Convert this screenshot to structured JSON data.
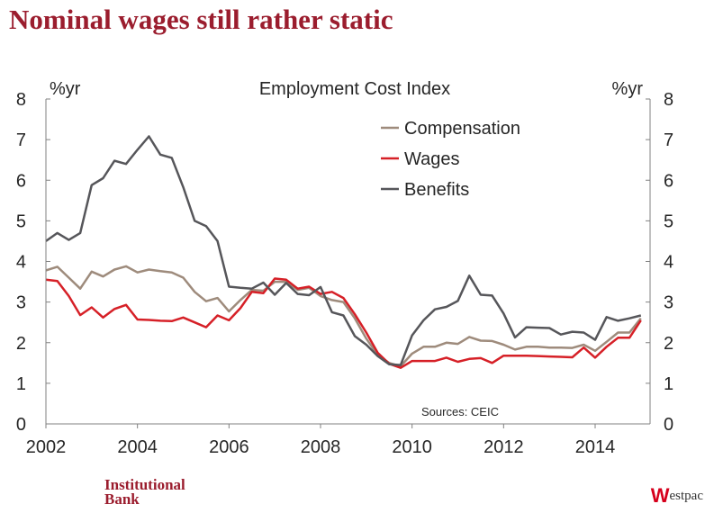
{
  "page": {
    "title": "Nominal wages still rather static",
    "footer_left_line1": "Institutional",
    "footer_left_line2": "Bank",
    "brand_mark": "W",
    "brand_text": "estpac"
  },
  "colors": {
    "title": "#9b1d2e",
    "compensation": "#9e8b7c",
    "wages": "#d62027",
    "benefits": "#56565a",
    "axis": "#808080"
  },
  "chart_data": {
    "type": "line",
    "title": "Employment Cost Index",
    "ylabel_left": "%yr",
    "ylabel_right": "%yr",
    "source": "Sources: CEIC",
    "xlim": [
      2002,
      2015.2
    ],
    "ylim": [
      0,
      8
    ],
    "x_ticks": [
      2002,
      2004,
      2006,
      2008,
      2010,
      2012,
      2014
    ],
    "y_ticks": [
      0,
      1,
      2,
      3,
      4,
      5,
      6,
      7,
      8
    ],
    "legend_position": "top-right",
    "series": [
      {
        "name": "Compensation",
        "color": "#9e8b7c",
        "points": [
          [
            2002.0,
            3.78
          ],
          [
            2002.25,
            3.87
          ],
          [
            2002.5,
            3.6
          ],
          [
            2002.75,
            3.33
          ],
          [
            2003.0,
            3.75
          ],
          [
            2003.25,
            3.63
          ],
          [
            2003.5,
            3.8
          ],
          [
            2003.75,
            3.88
          ],
          [
            2004.0,
            3.73
          ],
          [
            2004.25,
            3.8
          ],
          [
            2004.5,
            3.76
          ],
          [
            2004.75,
            3.73
          ],
          [
            2005.0,
            3.6
          ],
          [
            2005.25,
            3.25
          ],
          [
            2005.5,
            3.02
          ],
          [
            2005.75,
            3.1
          ],
          [
            2006.0,
            2.77
          ],
          [
            2006.25,
            3.05
          ],
          [
            2006.5,
            3.3
          ],
          [
            2006.75,
            3.28
          ],
          [
            2007.0,
            3.5
          ],
          [
            2007.25,
            3.5
          ],
          [
            2007.5,
            3.3
          ],
          [
            2007.75,
            3.35
          ],
          [
            2008.0,
            3.15
          ],
          [
            2008.25,
            3.05
          ],
          [
            2008.5,
            3.0
          ],
          [
            2008.75,
            2.6
          ],
          [
            2009.0,
            2.1
          ],
          [
            2009.25,
            1.7
          ],
          [
            2009.5,
            1.5
          ],
          [
            2009.75,
            1.42
          ],
          [
            2010.0,
            1.73
          ],
          [
            2010.25,
            1.9
          ],
          [
            2010.5,
            1.9
          ],
          [
            2010.75,
            2.0
          ],
          [
            2011.0,
            1.97
          ],
          [
            2011.25,
            2.14
          ],
          [
            2011.5,
            2.05
          ],
          [
            2011.75,
            2.04
          ],
          [
            2012.0,
            1.95
          ],
          [
            2012.25,
            1.83
          ],
          [
            2012.5,
            1.9
          ],
          [
            2012.75,
            1.9
          ],
          [
            2013.0,
            1.88
          ],
          [
            2013.25,
            1.88
          ],
          [
            2013.5,
            1.87
          ],
          [
            2013.75,
            1.95
          ],
          [
            2014.0,
            1.8
          ],
          [
            2014.25,
            2.02
          ],
          [
            2014.5,
            2.25
          ],
          [
            2014.75,
            2.25
          ],
          [
            2015.0,
            2.6
          ]
        ]
      },
      {
        "name": "Wages",
        "color": "#d62027",
        "points": [
          [
            2002.0,
            3.55
          ],
          [
            2002.25,
            3.52
          ],
          [
            2002.5,
            3.15
          ],
          [
            2002.75,
            2.68
          ],
          [
            2003.0,
            2.87
          ],
          [
            2003.25,
            2.62
          ],
          [
            2003.5,
            2.83
          ],
          [
            2003.75,
            2.93
          ],
          [
            2004.0,
            2.57
          ],
          [
            2004.25,
            2.56
          ],
          [
            2004.5,
            2.54
          ],
          [
            2004.75,
            2.53
          ],
          [
            2005.0,
            2.62
          ],
          [
            2005.25,
            2.5
          ],
          [
            2005.5,
            2.38
          ],
          [
            2005.75,
            2.67
          ],
          [
            2006.0,
            2.55
          ],
          [
            2006.25,
            2.85
          ],
          [
            2006.5,
            3.25
          ],
          [
            2006.75,
            3.22
          ],
          [
            2007.0,
            3.58
          ],
          [
            2007.25,
            3.55
          ],
          [
            2007.5,
            3.33
          ],
          [
            2007.75,
            3.38
          ],
          [
            2008.0,
            3.2
          ],
          [
            2008.25,
            3.25
          ],
          [
            2008.5,
            3.1
          ],
          [
            2008.75,
            2.7
          ],
          [
            2009.0,
            2.25
          ],
          [
            2009.25,
            1.75
          ],
          [
            2009.5,
            1.48
          ],
          [
            2009.75,
            1.38
          ],
          [
            2010.0,
            1.55
          ],
          [
            2010.25,
            1.55
          ],
          [
            2010.5,
            1.55
          ],
          [
            2010.75,
            1.63
          ],
          [
            2011.0,
            1.53
          ],
          [
            2011.25,
            1.6
          ],
          [
            2011.5,
            1.62
          ],
          [
            2011.75,
            1.5
          ],
          [
            2012.0,
            1.68
          ],
          [
            2012.25,
            1.68
          ],
          [
            2012.5,
            1.68
          ],
          [
            2012.75,
            1.67
          ],
          [
            2013.0,
            1.66
          ],
          [
            2013.25,
            1.65
          ],
          [
            2013.5,
            1.64
          ],
          [
            2013.75,
            1.88
          ],
          [
            2014.0,
            1.63
          ],
          [
            2014.25,
            1.9
          ],
          [
            2014.5,
            2.12
          ],
          [
            2014.75,
            2.12
          ],
          [
            2015.0,
            2.55
          ]
        ]
      },
      {
        "name": "Benefits",
        "color": "#56565a",
        "points": [
          [
            2002.0,
            4.5
          ],
          [
            2002.25,
            4.7
          ],
          [
            2002.5,
            4.53
          ],
          [
            2002.75,
            4.7
          ],
          [
            2003.0,
            5.88
          ],
          [
            2003.25,
            6.05
          ],
          [
            2003.5,
            6.48
          ],
          [
            2003.75,
            6.4
          ],
          [
            2004.0,
            6.75
          ],
          [
            2004.25,
            7.08
          ],
          [
            2004.5,
            6.63
          ],
          [
            2004.75,
            6.55
          ],
          [
            2005.0,
            5.83
          ],
          [
            2005.25,
            5.0
          ],
          [
            2005.5,
            4.87
          ],
          [
            2005.75,
            4.5
          ],
          [
            2006.0,
            3.38
          ],
          [
            2006.25,
            3.35
          ],
          [
            2006.5,
            3.33
          ],
          [
            2006.75,
            3.48
          ],
          [
            2007.0,
            3.18
          ],
          [
            2007.25,
            3.47
          ],
          [
            2007.5,
            3.2
          ],
          [
            2007.75,
            3.17
          ],
          [
            2008.0,
            3.37
          ],
          [
            2008.25,
            2.75
          ],
          [
            2008.5,
            2.67
          ],
          [
            2008.75,
            2.16
          ],
          [
            2009.0,
            1.95
          ],
          [
            2009.25,
            1.67
          ],
          [
            2009.5,
            1.47
          ],
          [
            2009.75,
            1.45
          ],
          [
            2010.0,
            2.18
          ],
          [
            2010.25,
            2.55
          ],
          [
            2010.5,
            2.82
          ],
          [
            2010.75,
            2.88
          ],
          [
            2011.0,
            3.03
          ],
          [
            2011.25,
            3.65
          ],
          [
            2011.5,
            3.18
          ],
          [
            2011.75,
            3.16
          ],
          [
            2012.0,
            2.72
          ],
          [
            2012.25,
            2.13
          ],
          [
            2012.5,
            2.38
          ],
          [
            2012.75,
            2.37
          ],
          [
            2013.0,
            2.36
          ],
          [
            2013.25,
            2.2
          ],
          [
            2013.5,
            2.27
          ],
          [
            2013.75,
            2.25
          ],
          [
            2014.0,
            2.07
          ],
          [
            2014.25,
            2.63
          ],
          [
            2014.5,
            2.54
          ],
          [
            2014.75,
            2.6
          ],
          [
            2015.0,
            2.67
          ]
        ]
      }
    ]
  }
}
